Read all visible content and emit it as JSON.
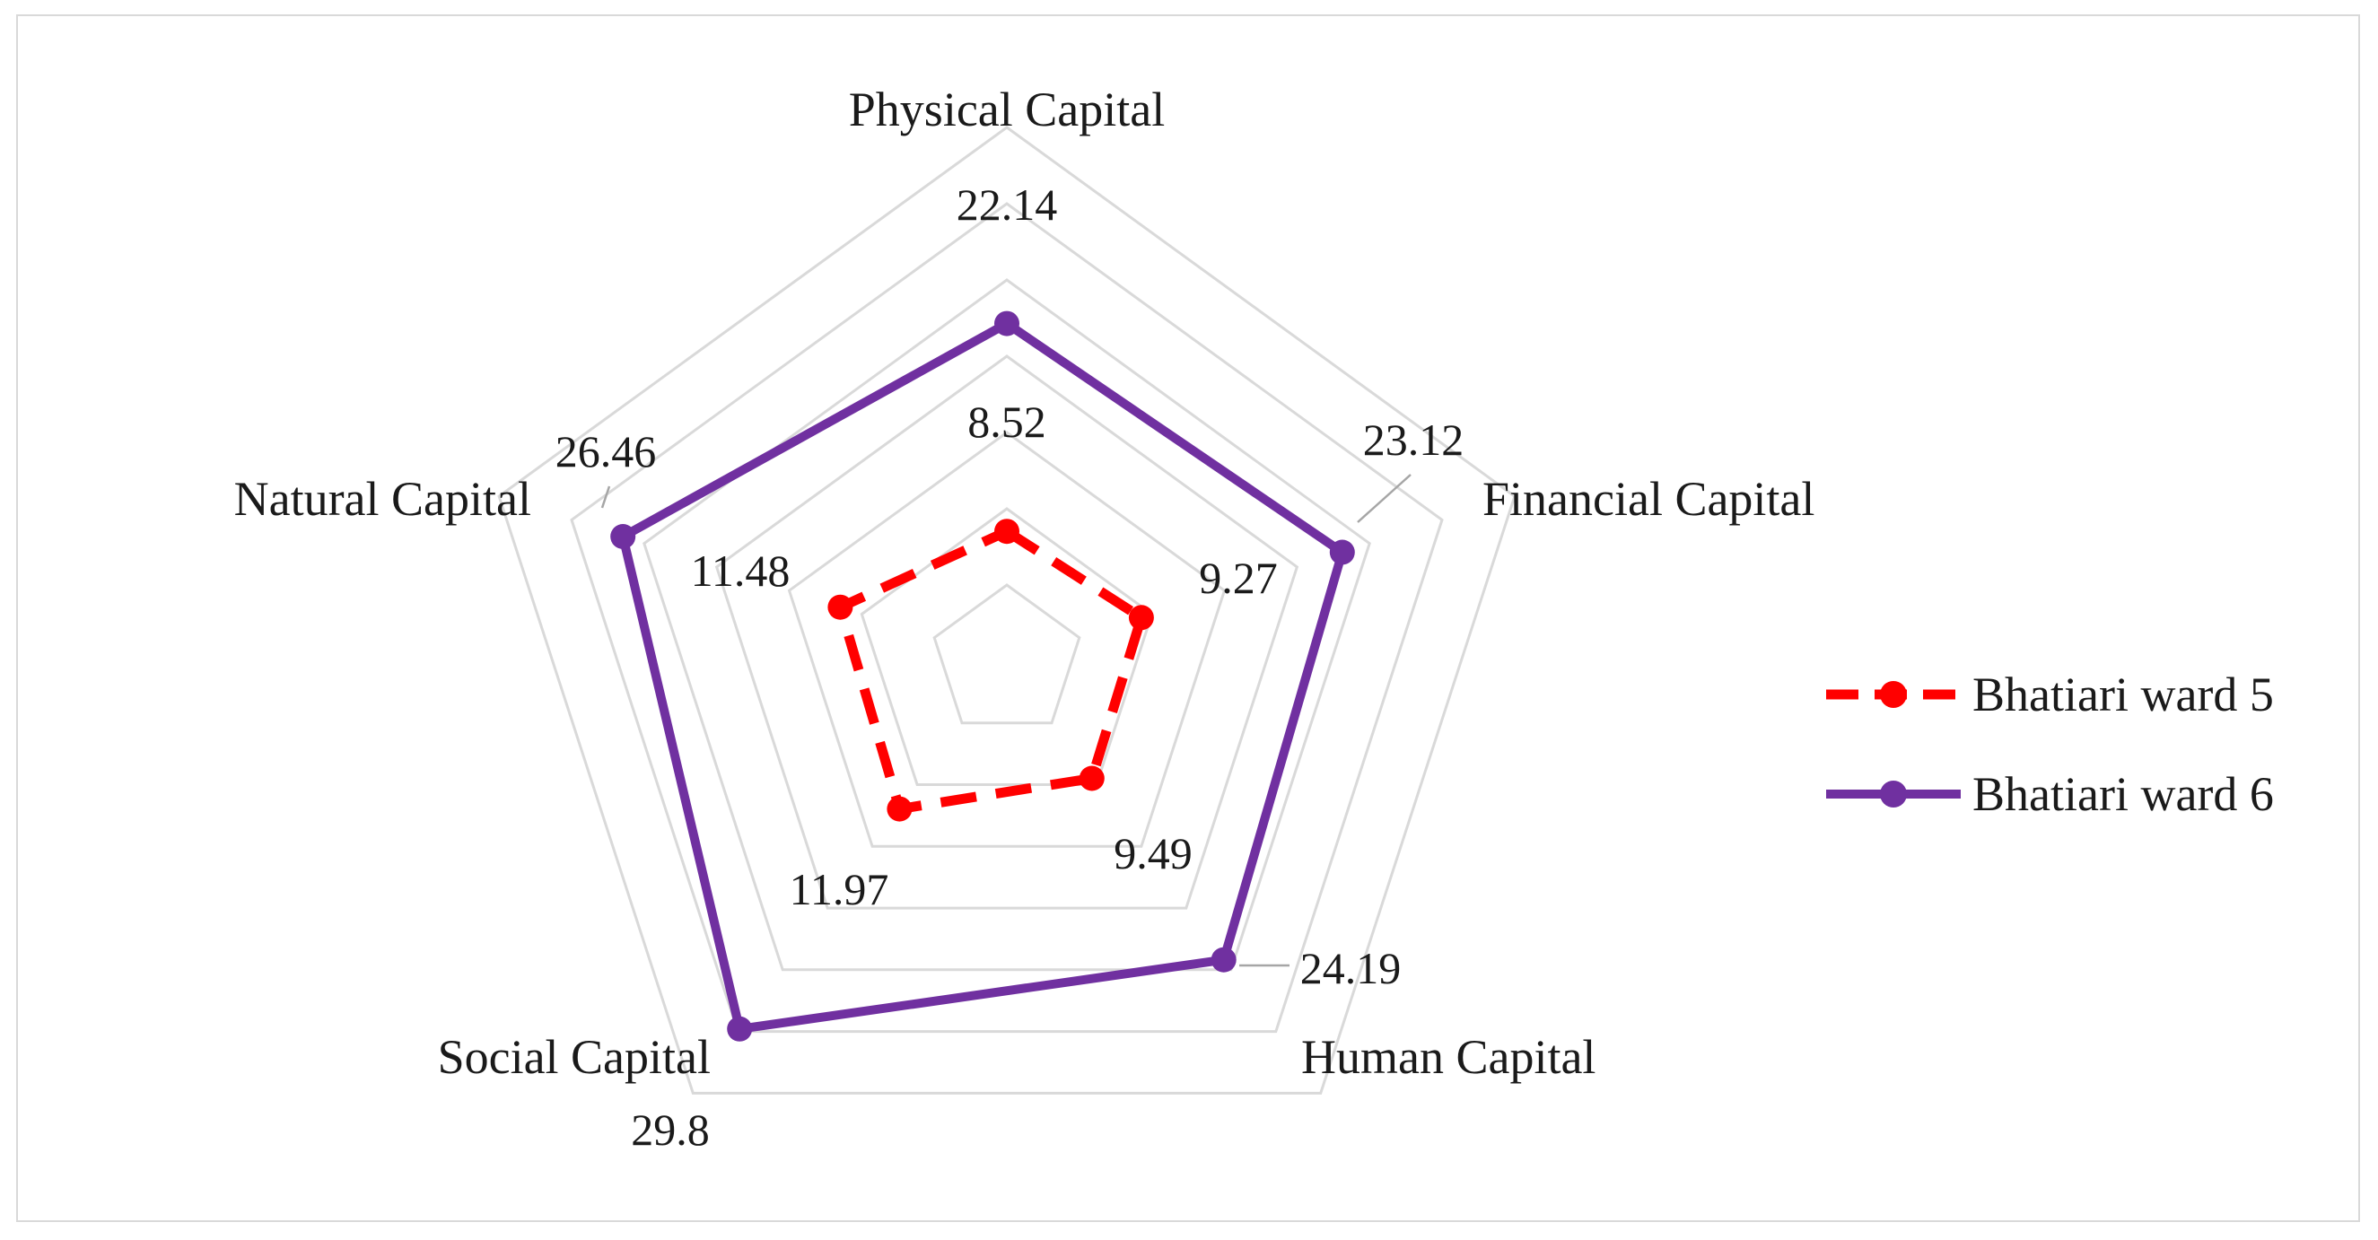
{
  "chart_data": {
    "type": "radar",
    "axes": [
      "Physical Capital",
      "Financial Capital",
      "Human Capital",
      "Social Capital",
      "Natural Capital"
    ],
    "rlim": [
      0,
      35
    ],
    "grid_rings": [
      5,
      10,
      15,
      20,
      25,
      30,
      35
    ],
    "grid": true,
    "legend_position": "right",
    "series": [
      {
        "name": "Bhatiari ward 5",
        "values": [
          8.52,
          9.27,
          9.49,
          11.97,
          11.48
        ],
        "labels": [
          "8.52",
          "9.27",
          "9.49",
          "11.97",
          "11.48"
        ],
        "color": "#ff0000",
        "style": "dashed"
      },
      {
        "name": "Bhatiari ward 6",
        "values": [
          22.14,
          23.12,
          24.19,
          29.8,
          26.46
        ],
        "labels": [
          "22.14",
          "23.12",
          "24.19",
          "29.8",
          "26.46"
        ],
        "color": "#7030a0",
        "style": "solid"
      }
    ]
  }
}
